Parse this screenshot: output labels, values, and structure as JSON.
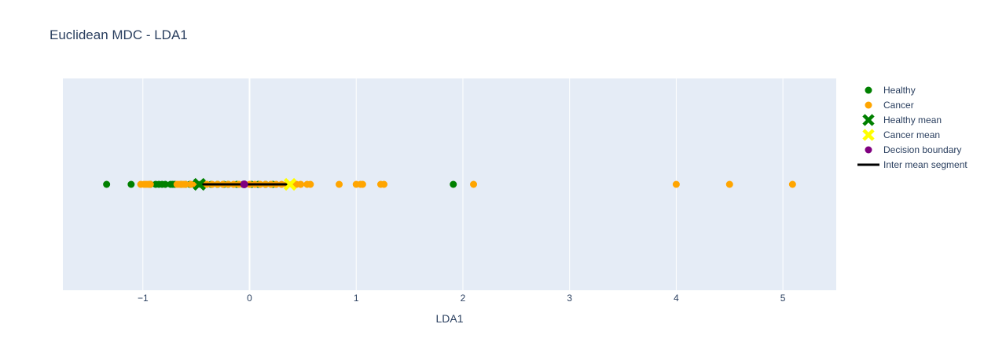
{
  "chart_data": {
    "type": "scatter",
    "title": "Euclidean MDC - LDA1",
    "xlabel": "LDA1",
    "ylabel": "",
    "xlim": [
      -1.75,
      5.5
    ],
    "x_ticks": [
      -1,
      0,
      1,
      2,
      3,
      4,
      5
    ],
    "x_tick_labels": [
      "−1",
      "0",
      "1",
      "2",
      "3",
      "4",
      "5"
    ],
    "grid": true,
    "legend_position": "top-right",
    "colors": {
      "plot_bg": "#e5ecf6",
      "grid": "#ffffff",
      "text": "#2a3f5f",
      "healthy": "#008000",
      "cancer": "#ffa500",
      "healthy_mean": "#008000",
      "cancer_mean": "#ffff00",
      "boundary": "#800080",
      "segment": "#000000"
    },
    "series": [
      {
        "name": "Healthy",
        "marker": "circle",
        "x": [
          -1.34,
          -1.11,
          -0.93,
          -0.88,
          -0.85,
          -0.82,
          -0.79,
          -0.74,
          -0.72,
          -0.7,
          -0.64,
          -0.6,
          -0.56,
          -0.52,
          -0.49,
          -0.46,
          -0.42,
          -0.36,
          -0.3,
          -0.24,
          -0.2,
          -0.12,
          -0.06,
          0.02,
          0.08,
          0.15,
          0.22,
          1.91
        ]
      },
      {
        "name": "Cancer",
        "marker": "circle",
        "x": [
          -1.02,
          -0.99,
          -0.97,
          -0.95,
          -0.93,
          -0.68,
          -0.66,
          -0.64,
          -0.62,
          -0.6,
          -0.55,
          -0.5,
          -0.45,
          -0.4,
          -0.35,
          -0.3,
          -0.25,
          -0.2,
          -0.15,
          -0.1,
          -0.05,
          0.0,
          0.05,
          0.1,
          0.15,
          0.2,
          0.25,
          0.3,
          0.35,
          0.4,
          0.44,
          0.48,
          0.54,
          0.57,
          0.84,
          1.0,
          1.04,
          1.06,
          1.23,
          1.26,
          2.1,
          4.0,
          4.5,
          5.09
        ]
      },
      {
        "name": "Healthy mean",
        "marker": "x",
        "x": [
          -0.47
        ]
      },
      {
        "name": "Cancer mean",
        "marker": "x",
        "x": [
          0.38
        ]
      },
      {
        "name": "Decision boundary",
        "marker": "circle",
        "x": [
          -0.05
        ]
      },
      {
        "name": "Inter mean segment",
        "marker": "line",
        "x": [
          -0.47,
          0.38
        ]
      }
    ]
  }
}
